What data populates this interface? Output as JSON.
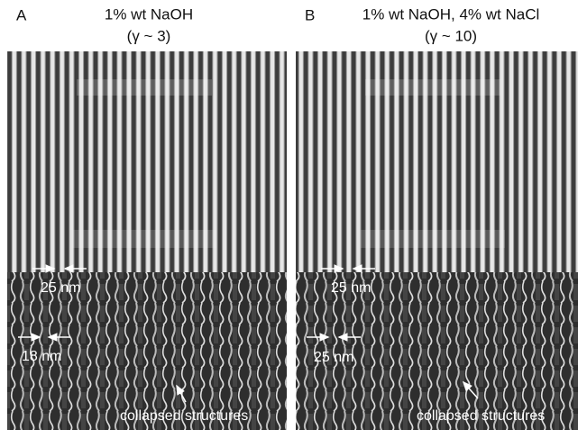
{
  "panels": [
    {
      "letter": "A",
      "title": [
        "1% wt NaOH",
        "(γ ~ 3)"
      ],
      "labels": [
        "25 nm",
        "18 nm",
        "collapsed structures"
      ]
    },
    {
      "letter": "B",
      "title": [
        "1% wt NaOH, 4% wt NaCl",
        "(γ ~ 10)"
      ],
      "labels": [
        "25 nm",
        "25 nm",
        "collapsed structures"
      ]
    }
  ]
}
